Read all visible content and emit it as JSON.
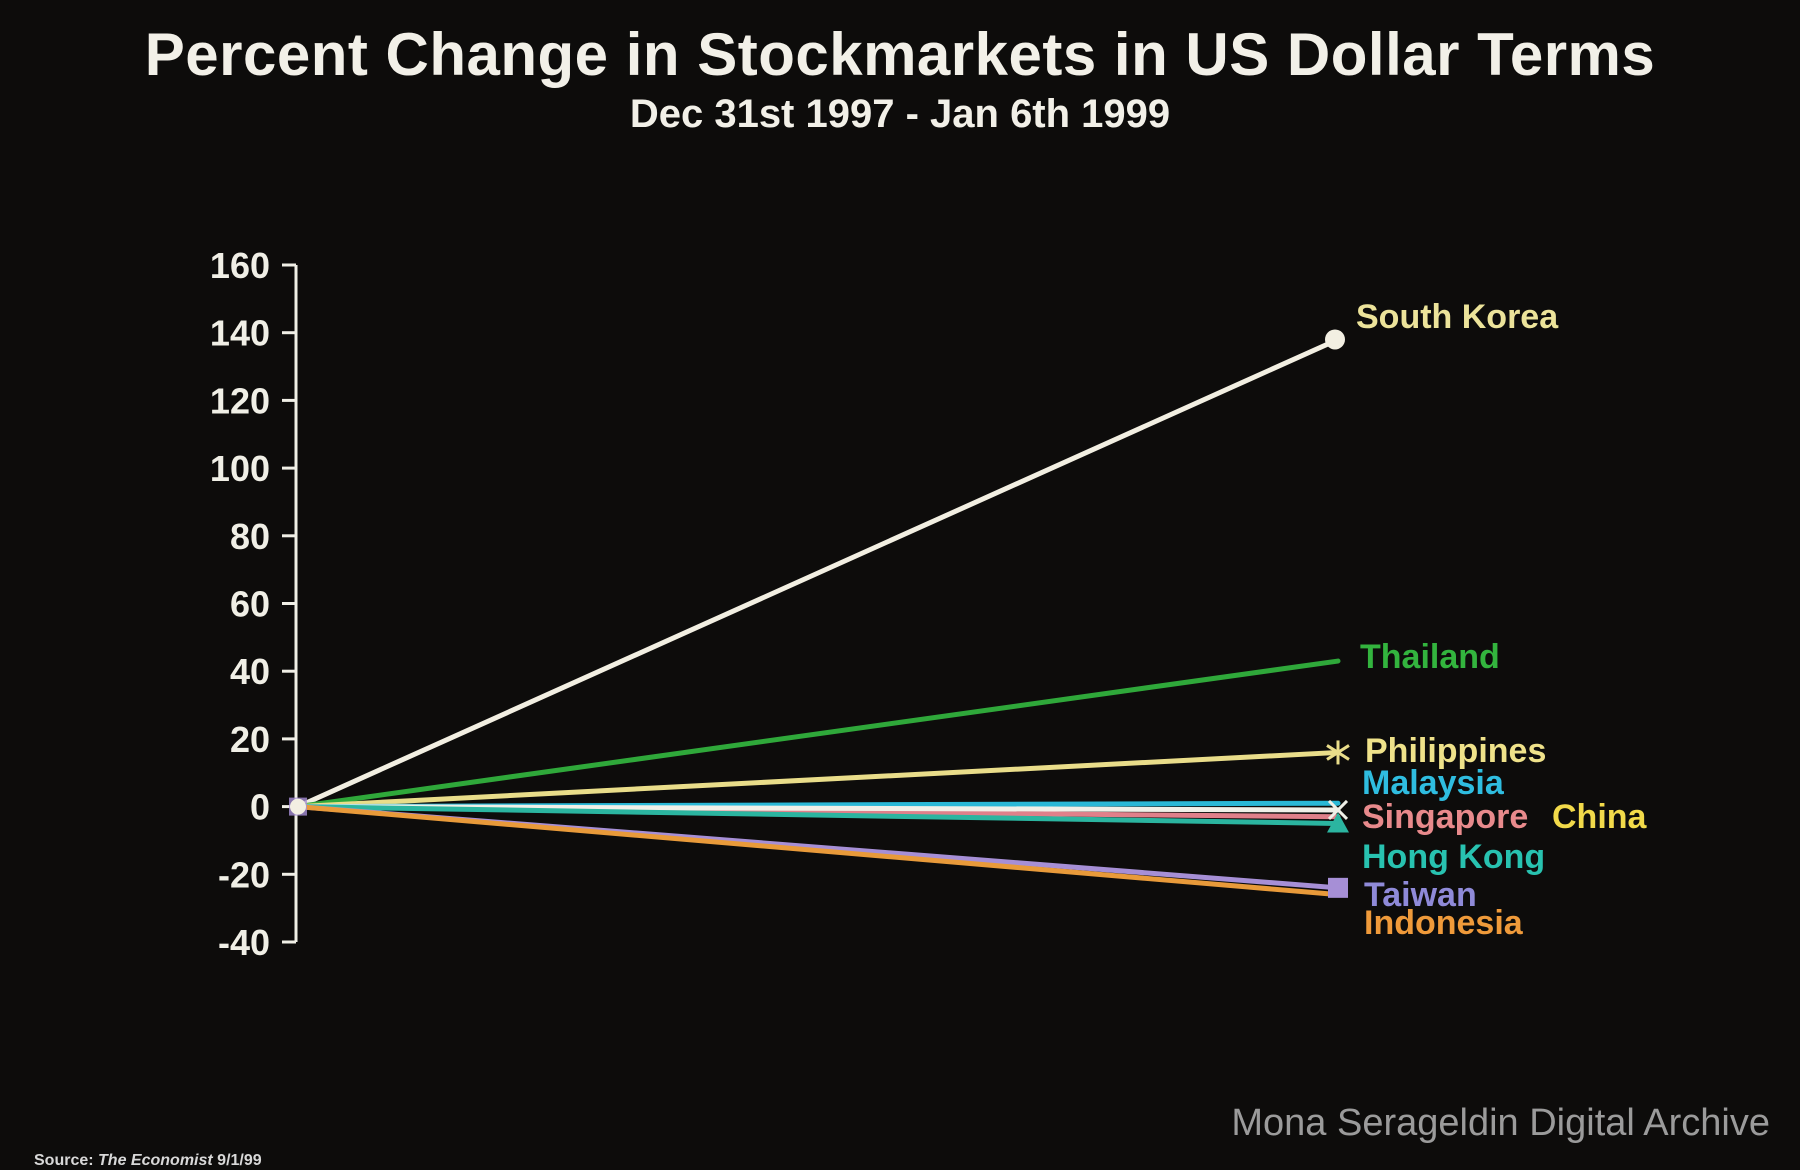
{
  "chart_data": {
    "type": "line",
    "title": "Percent Change in Stockmarkets in US Dollar Terms",
    "subtitle": "Dec 31st 1997 - Jan 6th 1999",
    "x": [
      "Dec 31st 1997",
      "Jan 6th 1999"
    ],
    "ylim": [
      -40,
      160
    ],
    "yticks": [
      160,
      140,
      120,
      100,
      80,
      60,
      40,
      20,
      0,
      -20,
      -40
    ],
    "grid": false,
    "legend": "direct labels at line ends",
    "series": [
      {
        "name": "South Korea",
        "values": [
          0,
          138
        ],
        "color": "#f2efe2",
        "label_color": "#ece39a",
        "marker": "circle"
      },
      {
        "name": "Thailand",
        "values": [
          0,
          43
        ],
        "color": "#2fa83a",
        "label_color": "#33b43e",
        "marker": "none"
      },
      {
        "name": "Philippines",
        "values": [
          0,
          16
        ],
        "color": "#e9dd8a",
        "label_color": "#efe28a",
        "marker": "star"
      },
      {
        "name": "Malaysia",
        "values": [
          0,
          1
        ],
        "color": "#2ab8d6",
        "label_color": "#2fbde0",
        "marker": "none"
      },
      {
        "name": "Singapore",
        "values": [
          0,
          -3
        ],
        "color": "#e0808a",
        "label_color": "#e88a8c",
        "marker": "none"
      },
      {
        "name": "China",
        "values": [
          0,
          -1
        ],
        "color": "#f0f0e8",
        "label_color": "#f2da4a",
        "marker": "x"
      },
      {
        "name": "Hong Kong",
        "values": [
          0,
          -5
        ],
        "color": "#2bb5a0",
        "label_color": "#28c2b0",
        "marker": "triangle"
      },
      {
        "name": "Taiwan",
        "values": [
          0,
          -24
        ],
        "color": "#a68fd6",
        "label_color": "#8f8ad8",
        "marker": "square"
      },
      {
        "name": "Indonesia",
        "values": [
          0,
          -26
        ],
        "color": "#e89a3a",
        "label_color": "#ef9a3a",
        "marker": "none"
      }
    ]
  },
  "watermark": "Mona Serageldin Digital Archive",
  "source": {
    "prefix": "Source:",
    "publication": "The Economist",
    "date": "9/1/99"
  }
}
